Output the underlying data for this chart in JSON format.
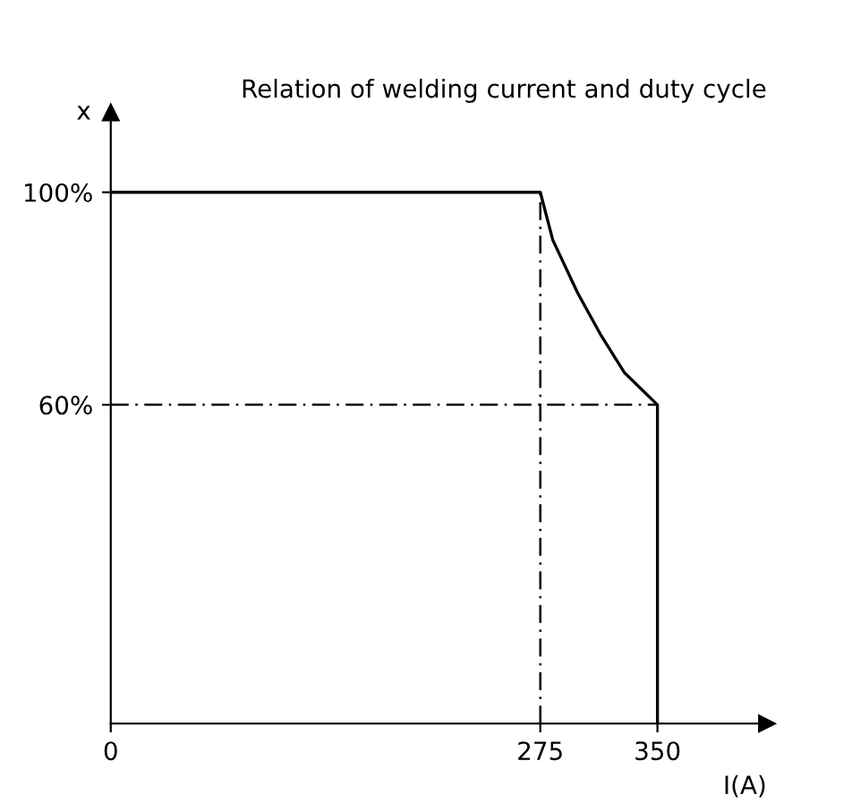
{
  "chart_data": {
    "type": "line",
    "title": "Relation of welding current and duty cycle",
    "xlabel": "I(A)",
    "ylabel": "x",
    "x": [
      0,
      275,
      283,
      299,
      314,
      329,
      350,
      350
    ],
    "series": [
      {
        "color": "#000000",
        "values": [
          100,
          100,
          91,
          81,
          73,
          66,
          60,
          0
        ]
      }
    ],
    "xlim": [
      0,
      420
    ],
    "ylim": [
      0,
      115
    ],
    "xticks": [
      0,
      275,
      350
    ],
    "yticks": [
      {
        "value": 60,
        "label": "60%"
      },
      {
        "value": 100,
        "label": "100%"
      }
    ],
    "ref_lines": [
      {
        "axis": "x",
        "value": 275,
        "line_style": "dashed",
        "color": "#000000"
      },
      {
        "axis": "y",
        "value": 60,
        "line_style": "dashed",
        "color": "#000000"
      }
    ],
    "grid": false,
    "marker": "none",
    "line_style": "solid"
  }
}
